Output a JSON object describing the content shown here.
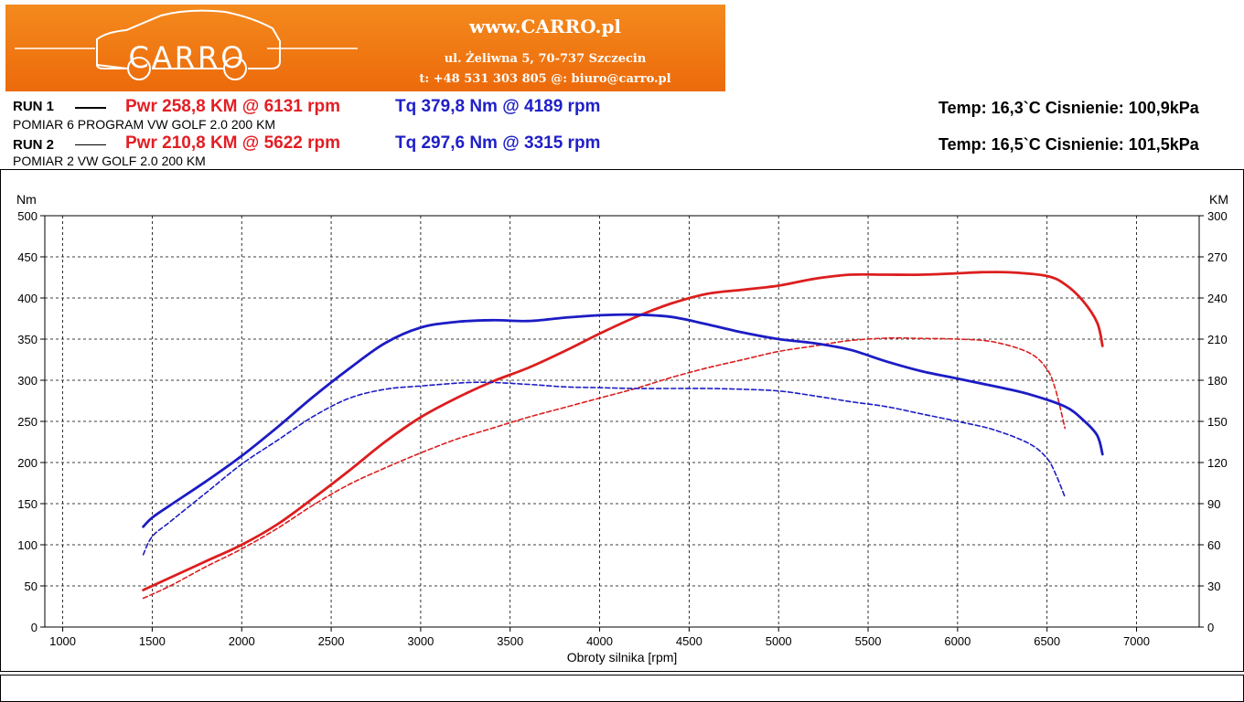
{
  "header": {
    "site": "www.CARRO.pl",
    "address": "ul. Żeliwna 5, 70-737 Szczecin",
    "contact": "t: +48 531 303 805   @: biuro@carro.pl",
    "logo_text": "CARRO",
    "colors": {
      "banner": "#ef7412",
      "banner_text": "#ffffff"
    }
  },
  "runs": [
    {
      "label": "RUN 1",
      "power": "Pwr  258,8 KM @ 6131 rpm",
      "torque": "Tq 379,8 Nm @ 4189 rpm",
      "description": "POMIAR 6 PROGRAM VW GOLF 2.0 200 KM",
      "conditions": "Temp: 16,3`C   Cisnienie: 100,9kPa",
      "line_style": "solid"
    },
    {
      "label": "RUN 2",
      "power": "Pwr  210,8 KM @ 5622 rpm",
      "torque": "Tq 297,6 Nm @ 3315 rpm",
      "description": "POMIAR 2 VW GOLF 2.0 200 KM",
      "conditions": "Temp: 16,5`C   Cisnienie: 101,5kPa",
      "line_style": "dashed"
    }
  ],
  "chart_data": {
    "type": "line",
    "xlabel": "Obroty silnika [rpm]",
    "ylabel_left": "Nm",
    "ylabel_right": "KM",
    "xlim": [
      900,
      7350
    ],
    "ylim_left": [
      0,
      500
    ],
    "ylim_right": [
      0,
      300
    ],
    "x_ticks": [
      1000,
      1500,
      2000,
      2500,
      3000,
      3500,
      4000,
      4500,
      5000,
      5500,
      6000,
      6500,
      7000
    ],
    "y_ticks_left": [
      0,
      50,
      100,
      150,
      200,
      250,
      300,
      350,
      400,
      450,
      500
    ],
    "y_ticks_right": [
      0,
      30,
      60,
      90,
      120,
      150,
      180,
      210,
      240,
      270,
      300
    ],
    "grid": true,
    "colors": {
      "power": "#dc1e1e",
      "torque": "#1c1cc4"
    },
    "series": [
      {
        "run": "RUN 1",
        "quantity": "power",
        "axis": "right",
        "style": "solid",
        "x": [
          1450,
          1600,
          1800,
          2000,
          2200,
          2400,
          2600,
          2800,
          3000,
          3200,
          3400,
          3600,
          3800,
          4000,
          4200,
          4400,
          4600,
          4800,
          5000,
          5200,
          5400,
          5600,
          5800,
          6000,
          6131,
          6300,
          6500,
          6600,
          6700,
          6780,
          6810
        ],
        "y": [
          27,
          36,
          48,
          60,
          75,
          94,
          114,
          135,
          153,
          167,
          179,
          189,
          201,
          214,
          226,
          236,
          243,
          246,
          249,
          254,
          257,
          257,
          257,
          258,
          258.8,
          258.7,
          256,
          250,
          238,
          222,
          205
        ]
      },
      {
        "run": "RUN 2",
        "quantity": "power",
        "axis": "right",
        "style": "dashed",
        "x": [
          1450,
          1600,
          1800,
          2000,
          2200,
          2400,
          2600,
          2800,
          3000,
          3200,
          3400,
          3600,
          3800,
          4000,
          4200,
          4400,
          4600,
          4800,
          5000,
          5200,
          5400,
          5622,
          5800,
          6000,
          6200,
          6400,
          6500,
          6550,
          6600
        ],
        "y": [
          21,
          30,
          44,
          57,
          72,
          89,
          104,
          116,
          127,
          137,
          145,
          153,
          160,
          167,
          174,
          182,
          189,
          195,
          201,
          205,
          209,
          210.8,
          210.5,
          210,
          208,
          200,
          188,
          172,
          145
        ]
      },
      {
        "run": "RUN 1",
        "quantity": "torque",
        "axis": "left",
        "style": "solid",
        "x": [
          1450,
          1500,
          1600,
          1800,
          2000,
          2200,
          2400,
          2600,
          2800,
          3000,
          3200,
          3400,
          3600,
          3800,
          4000,
          4189,
          4400,
          4600,
          4800,
          5000,
          5200,
          5400,
          5600,
          5800,
          6000,
          6200,
          6400,
          6600,
          6700,
          6780,
          6810
        ],
        "y": [
          122,
          133,
          148,
          177,
          208,
          243,
          280,
          314,
          345,
          364,
          371,
          373,
          372,
          376,
          379,
          379.8,
          377,
          368,
          358,
          350,
          345,
          337,
          323,
          311,
          302,
          293,
          283,
          268,
          252,
          233,
          210
        ]
      },
      {
        "run": "RUN 2",
        "quantity": "torque",
        "axis": "left",
        "style": "dashed",
        "x": [
          1450,
          1500,
          1600,
          1800,
          2000,
          2200,
          2400,
          2600,
          2800,
          3000,
          3315,
          3600,
          3800,
          4000,
          4200,
          4400,
          4600,
          4800,
          5000,
          5200,
          5400,
          5600,
          5800,
          6000,
          6200,
          6400,
          6500,
          6550,
          6600
        ],
        "y": [
          88,
          110,
          128,
          163,
          198,
          227,
          256,
          278,
          289,
          293,
          297.6,
          295,
          292,
          291,
          290,
          290,
          290,
          289,
          287,
          281,
          274,
          268,
          259,
          250,
          240,
          223,
          205,
          185,
          158
        ]
      }
    ]
  }
}
